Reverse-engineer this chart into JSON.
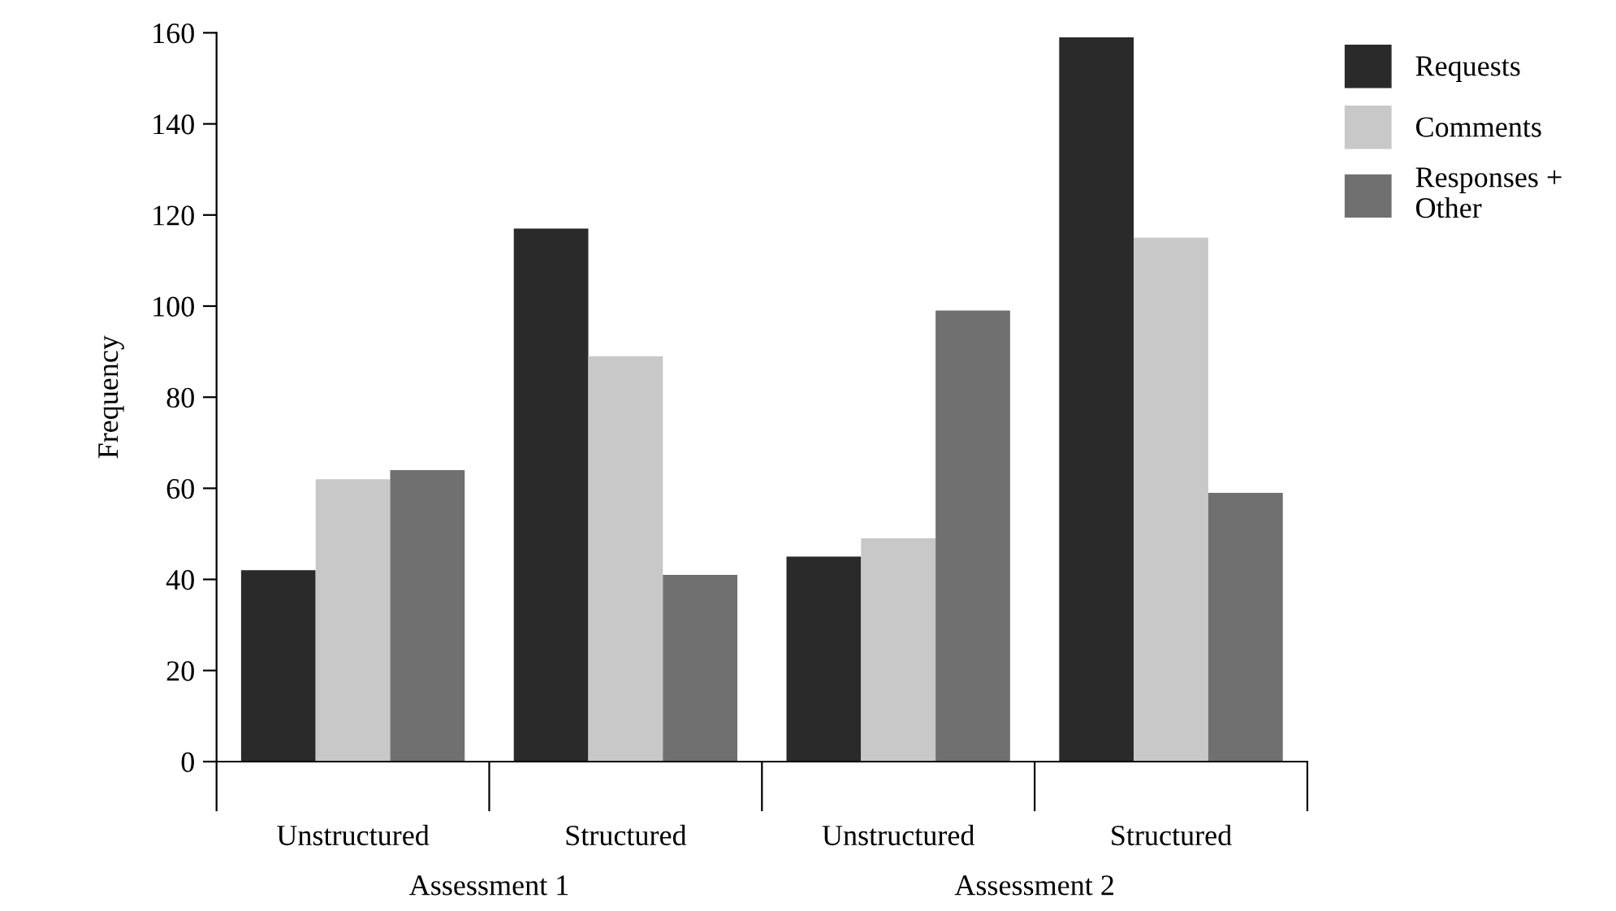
{
  "chart_data": {
    "type": "bar",
    "ylabel": "Frequency",
    "categories": [
      "Unstructured",
      "Structured",
      "Unstructured",
      "Structured"
    ],
    "series": [
      {
        "name": "Requests",
        "color": "#2a2a2a",
        "values": [
          42,
          117,
          45,
          159
        ]
      },
      {
        "name": "Comments",
        "color": "#c8c8c8",
        "values": [
          62,
          89,
          49,
          115
        ]
      },
      {
        "name": "Responses +\nOther",
        "color": "#707070",
        "values": [
          64,
          41,
          99,
          59
        ]
      }
    ],
    "annotations": [
      "Assessment 1",
      "Assessment 2"
    ],
    "ylim": [
      0,
      160
    ],
    "yticks": [
      0,
      20,
      40,
      60,
      80,
      100,
      120,
      140,
      160
    ],
    "grid": false,
    "legend": "top right"
  }
}
